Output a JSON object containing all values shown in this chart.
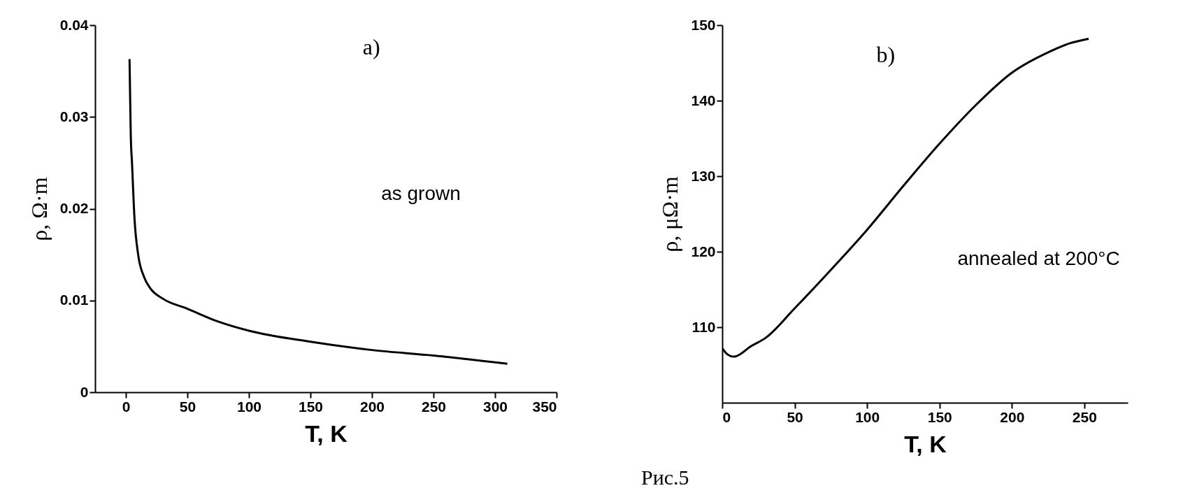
{
  "chart_data": [
    {
      "type": "line",
      "xlabel": "T, K",
      "ylabel": "ρ,   Ω·m",
      "xlim": [
        -25,
        350
      ],
      "xticks": [
        0,
        50,
        100,
        150,
        200,
        250,
        300,
        350
      ],
      "ylim": [
        0,
        0.04
      ],
      "yticks": [
        0,
        0.01,
        0.02,
        0.03,
        0.04
      ],
      "grid": false,
      "marker": "none",
      "line_style": "solid",
      "annotations": [
        "a)",
        "as grown"
      ],
      "series": [
        {
          "color": "#000000",
          "x": [
            3,
            3.5,
            4,
            5,
            7,
            10,
            15,
            20,
            30,
            50,
            75,
            100,
            150,
            200,
            250,
            310
          ],
          "values": [
            0.0363,
            0.032,
            0.028,
            0.025,
            0.019,
            0.015,
            0.0125,
            0.0113,
            0.0102,
            0.0091,
            0.0077,
            0.0067,
            0.0055,
            0.0046,
            0.004,
            0.0031
          ]
        }
      ]
    },
    {
      "type": "line",
      "xlabel": "T, K",
      "ylabel": "ρ, μΩ·m",
      "xlim": [
        0,
        280
      ],
      "xticks": [
        0,
        50,
        100,
        150,
        200,
        250
      ],
      "ylim": [
        100,
        150
      ],
      "yticks": [
        110,
        120,
        130,
        140,
        150
      ],
      "grid": false,
      "marker": "none",
      "line_style": "solid",
      "annotations": [
        "b)",
        "annealed at 200°C",
        "Рис.5"
      ],
      "series": [
        {
          "color": "#000000",
          "x": [
            0,
            3,
            8,
            20,
            30,
            50,
            75,
            100,
            125,
            150,
            175,
            200,
            225,
            240,
            253
          ],
          "values": [
            107.2,
            106.5,
            106.1,
            107.5,
            108.6,
            112.5,
            117.6,
            122.9,
            128.7,
            134.3,
            139.4,
            143.7,
            146.4,
            147.6,
            148.2
          ]
        }
      ]
    }
  ]
}
